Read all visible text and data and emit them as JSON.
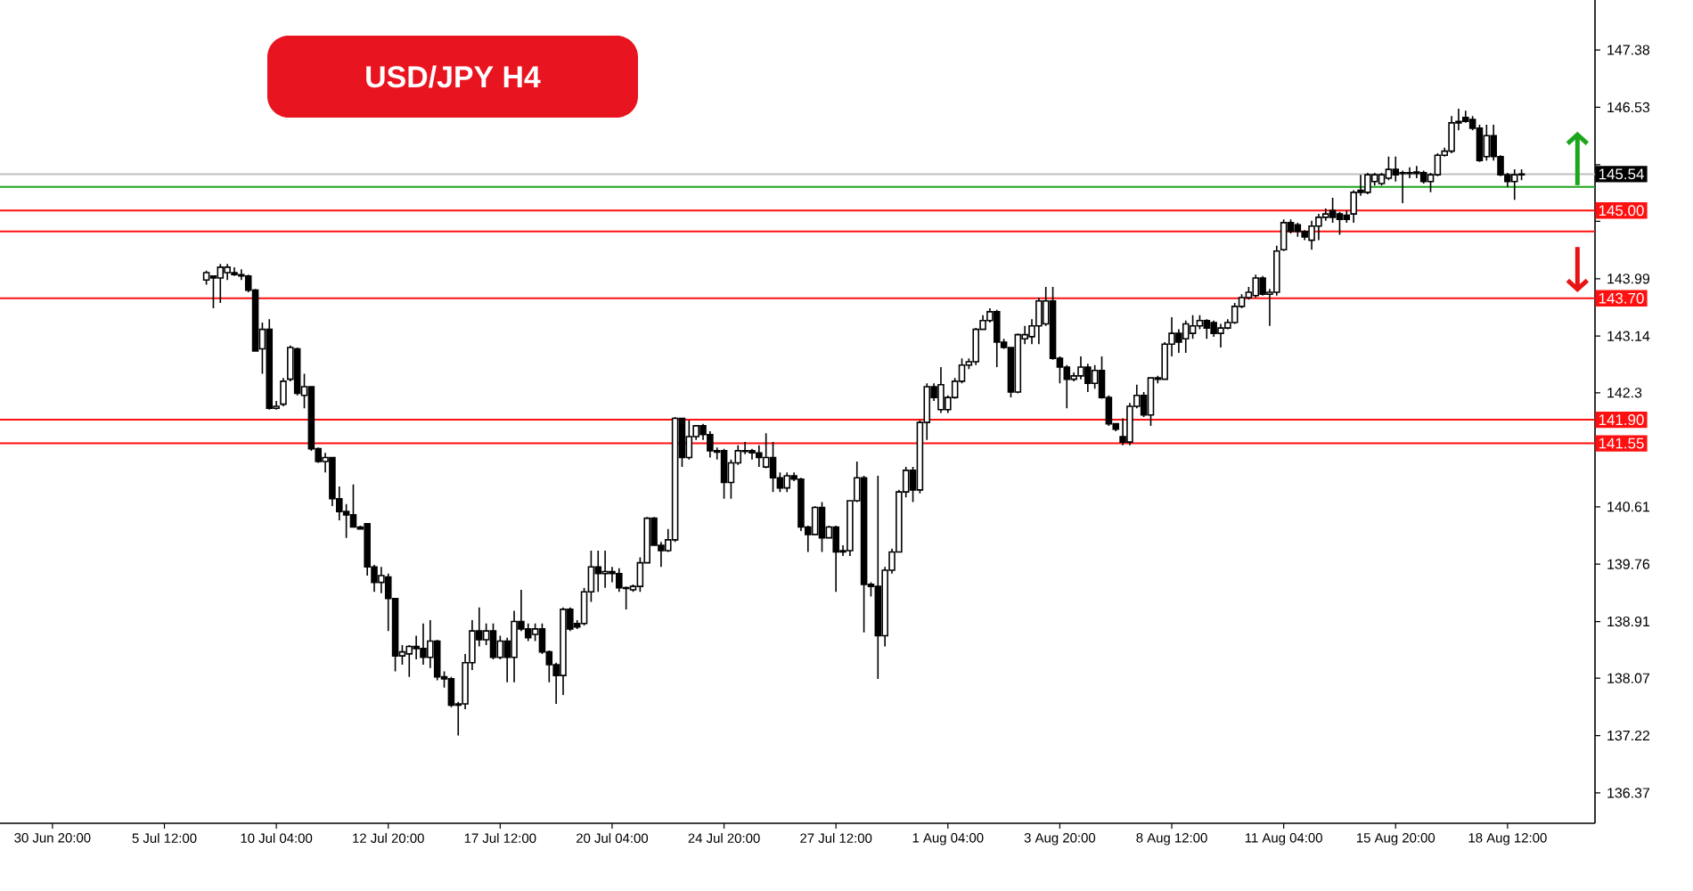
{
  "chart_data": {
    "type": "candlestick",
    "title": "USD/JPY H4",
    "color": "#000000",
    "categories": [
      null,
      null,
      null,
      null,
      null,
      null,
      null,
      "30 Jun 20:00",
      null,
      null,
      null,
      null,
      null,
      null,
      null,
      null,
      null,
      null,
      null,
      null,
      null,
      null,
      null,
      "5 Jul 12:00",
      null,
      null,
      null,
      null,
      null,
      null,
      null,
      null,
      null,
      null,
      null,
      null,
      null,
      null,
      null,
      "10 Jul 04:00",
      null,
      null,
      null,
      null,
      null,
      null,
      null,
      null,
      null,
      null,
      null,
      null,
      null,
      null,
      null,
      "12 Jul 20:00",
      null,
      null,
      null,
      null,
      null,
      null,
      null,
      null,
      null,
      null,
      null,
      null,
      null,
      null,
      null,
      "17 Jul 12:00",
      null,
      null,
      null,
      null,
      null,
      null,
      null,
      null,
      null,
      null,
      null,
      null,
      null,
      null,
      null,
      "20 Jul 04:00",
      null,
      null,
      null,
      null,
      null,
      null,
      null,
      null,
      null,
      null,
      null,
      null,
      null,
      null,
      null,
      "24 Jul 20:00",
      null,
      null,
      null,
      null,
      null,
      null,
      null,
      null,
      null,
      null,
      null,
      null,
      null,
      null,
      null,
      "27 Jul 12:00",
      null,
      null,
      null,
      null,
      null,
      null,
      null,
      null,
      null,
      null,
      null,
      null,
      null,
      null,
      null,
      "1 Aug 04:00",
      null,
      null,
      null,
      null,
      null,
      null,
      null,
      null,
      null,
      null,
      null,
      null,
      null,
      null,
      null,
      "3 Aug 20:00",
      null,
      null,
      null,
      null,
      null,
      null,
      null,
      null,
      null,
      null,
      null,
      null,
      null,
      null,
      null,
      "8 Aug 12:00",
      null,
      null,
      null,
      null,
      null,
      null,
      null,
      null,
      null,
      null,
      null,
      null,
      null,
      null,
      null,
      "11 Aug 04:00",
      null,
      null,
      null,
      null,
      null,
      null,
      null,
      null,
      null,
      null,
      null,
      null,
      null,
      null,
      null,
      "15 Aug 20:00",
      null,
      null,
      null,
      null,
      null,
      null,
      null,
      null,
      null,
      null,
      null,
      null,
      null,
      null,
      null,
      "18 Aug 12:00",
      null,
      null,
      null,
      null,
      null,
      null,
      null,
      null,
      null,
      null,
      null,
      null
    ],
    "ohlc": [
      null,
      null,
      null,
      null,
      null,
      null,
      null,
      null,
      null,
      null,
      null,
      null,
      null,
      null,
      null,
      null,
      null,
      null,
      null,
      null,
      null,
      null,
      null,
      null,
      null,
      null,
      null,
      null,
      null,
      [
        143.97,
        144.11,
        143.9,
        144.08
      ],
      [
        144.03,
        144.03,
        143.55,
        144.0
      ],
      [
        144.0,
        144.21,
        143.63,
        144.16
      ],
      [
        144.08,
        144.21,
        143.97,
        144.16
      ],
      [
        144.08,
        144.16,
        144.03,
        144.05
      ],
      [
        144.05,
        144.13,
        143.97,
        144.03
      ],
      [
        144.03,
        144.05,
        143.79,
        143.82
      ],
      [
        143.82,
        143.84,
        142.92,
        142.92
      ],
      [
        142.95,
        143.34,
        142.58,
        143.24
      ],
      [
        143.24,
        143.39,
        142.05,
        142.07
      ],
      [
        142.07,
        142.18,
        142.05,
        142.1
      ],
      [
        142.13,
        142.52,
        142.1,
        142.47
      ],
      [
        142.5,
        143.0,
        142.47,
        142.97
      ],
      [
        142.95,
        142.97,
        142.26,
        142.29
      ],
      [
        142.26,
        142.58,
        142.07,
        142.39
      ],
      [
        142.39,
        142.39,
        141.44,
        141.47
      ],
      [
        141.47,
        141.49,
        141.26,
        141.28
      ],
      [
        141.28,
        141.41,
        141.12,
        141.34
      ],
      [
        141.34,
        141.34,
        140.62,
        140.73
      ],
      [
        140.73,
        140.91,
        140.41,
        140.54
      ],
      [
        140.54,
        140.65,
        140.15,
        140.49
      ],
      [
        140.49,
        140.94,
        140.31,
        140.31
      ],
      [
        140.31,
        140.33,
        140.28,
        140.28
      ],
      [
        140.36,
        140.36,
        139.59,
        139.72
      ],
      [
        139.72,
        139.75,
        139.35,
        139.49
      ],
      [
        139.49,
        139.72,
        139.33,
        139.59
      ],
      [
        139.57,
        139.62,
        138.77,
        139.25
      ],
      [
        139.25,
        139.25,
        138.17,
        138.4
      ],
      [
        138.4,
        138.56,
        138.27,
        138.46
      ],
      [
        138.43,
        138.56,
        138.09,
        138.54
      ],
      [
        138.54,
        138.7,
        138.35,
        138.51
      ],
      [
        138.51,
        138.88,
        138.27,
        138.38
      ],
      [
        138.38,
        138.93,
        138.22,
        138.62
      ],
      [
        138.62,
        138.64,
        138.04,
        138.09
      ],
      [
        138.09,
        138.17,
        137.93,
        138.06
      ],
      [
        138.06,
        138.09,
        137.64,
        137.67
      ],
      [
        137.67,
        137.72,
        137.22,
        137.69
      ],
      [
        137.69,
        138.43,
        137.61,
        138.3
      ],
      [
        138.3,
        138.93,
        138.19,
        138.77
      ],
      [
        138.77,
        139.12,
        138.54,
        138.64
      ],
      [
        138.64,
        138.88,
        138.56,
        138.77
      ],
      [
        138.77,
        138.88,
        138.35,
        138.38
      ],
      [
        138.38,
        138.7,
        138.35,
        138.62
      ],
      [
        138.62,
        138.67,
        138.01,
        138.38
      ],
      [
        138.38,
        139.07,
        138.01,
        138.91
      ],
      [
        138.91,
        139.38,
        138.77,
        138.8
      ],
      [
        138.8,
        138.88,
        138.62,
        138.67
      ],
      [
        138.72,
        138.88,
        138.62,
        138.8
      ],
      [
        138.8,
        138.88,
        138.43,
        138.46
      ],
      [
        138.46,
        138.48,
        138.01,
        138.27
      ],
      [
        138.27,
        138.3,
        137.69,
        138.11
      ],
      [
        138.11,
        139.12,
        137.82,
        139.09
      ],
      [
        139.09,
        139.12,
        138.77,
        138.8
      ],
      [
        138.88,
        138.93,
        138.8,
        138.83
      ],
      [
        138.88,
        139.41,
        138.85,
        139.35
      ],
      [
        139.35,
        139.96,
        139.2,
        139.72
      ],
      [
        139.72,
        139.96,
        139.35,
        139.62
      ],
      [
        139.62,
        139.96,
        139.41,
        139.65
      ],
      [
        139.65,
        139.72,
        139.49,
        139.62
      ],
      [
        139.62,
        139.7,
        139.35,
        139.41
      ],
      [
        139.41,
        139.43,
        139.09,
        139.4
      ],
      [
        139.38,
        139.46,
        139.35,
        139.43
      ],
      [
        139.43,
        139.86,
        139.35,
        139.78
      ],
      [
        139.78,
        140.46,
        139.78,
        140.44
      ],
      [
        140.44,
        140.46,
        140.04,
        140.04
      ],
      [
        140.04,
        140.09,
        139.72,
        139.96
      ],
      [
        139.96,
        140.28,
        139.94,
        140.12
      ],
      [
        140.12,
        141.94,
        140.09,
        141.92
      ],
      [
        141.92,
        141.92,
        141.2,
        141.34
      ],
      [
        141.34,
        141.89,
        141.31,
        141.65
      ],
      [
        141.65,
        141.81,
        141.6,
        141.81
      ],
      [
        141.81,
        141.84,
        141.6,
        141.68
      ],
      [
        141.68,
        141.73,
        141.34,
        141.44
      ],
      [
        141.44,
        141.49,
        141.31,
        141.42
      ],
      [
        141.44,
        141.47,
        140.73,
        140.97
      ],
      [
        140.97,
        141.31,
        140.73,
        141.26
      ],
      [
        141.26,
        141.52,
        141.23,
        141.44
      ],
      [
        141.44,
        141.57,
        141.39,
        141.43
      ],
      [
        141.44,
        141.47,
        141.31,
        141.41
      ],
      [
        141.41,
        141.52,
        141.2,
        141.34
      ],
      [
        141.2,
        141.7,
        141.18,
        141.34
      ],
      [
        141.34,
        141.57,
        140.83,
        141.04
      ],
      [
        141.04,
        141.12,
        140.83,
        140.89
      ],
      [
        140.89,
        141.12,
        140.83,
        141.07
      ],
      [
        141.07,
        141.12,
        140.99,
        141.02
      ],
      [
        141.02,
        141.04,
        140.25,
        140.31
      ],
      [
        140.31,
        140.33,
        139.94,
        140.2
      ],
      [
        140.2,
        140.62,
        140.2,
        140.6
      ],
      [
        140.6,
        140.68,
        139.94,
        140.15
      ],
      [
        140.15,
        140.33,
        140.15,
        140.31
      ],
      [
        140.31,
        140.33,
        139.35,
        139.94
      ],
      [
        139.94,
        140.04,
        139.88,
        139.96
      ],
      [
        139.96,
        140.7,
        139.88,
        140.7
      ],
      [
        140.7,
        141.28,
        140.68,
        141.04
      ],
      [
        141.04,
        141.07,
        138.75,
        139.46
      ],
      [
        139.46,
        139.49,
        139.28,
        139.43
      ],
      [
        139.43,
        141.07,
        138.06,
        138.7
      ],
      [
        138.7,
        139.72,
        138.54,
        139.67
      ],
      [
        139.67,
        139.99,
        139.62,
        139.94
      ],
      [
        139.94,
        140.86,
        139.94,
        140.83
      ],
      [
        140.83,
        141.2,
        140.75,
        141.15
      ],
      [
        141.15,
        141.2,
        140.68,
        140.86
      ],
      [
        140.86,
        141.89,
        140.81,
        141.86
      ],
      [
        141.86,
        142.44,
        141.6,
        142.39
      ],
      [
        142.39,
        142.44,
        142.18,
        142.23
      ],
      [
        142.05,
        142.68,
        142.0,
        142.42
      ],
      [
        142.05,
        142.26,
        142.0,
        142.23
      ],
      [
        142.23,
        142.52,
        142.21,
        142.47
      ],
      [
        142.47,
        142.81,
        142.44,
        142.71
      ],
      [
        142.71,
        142.81,
        142.65,
        142.76
      ],
      [
        142.76,
        143.26,
        142.71,
        143.24
      ],
      [
        143.24,
        143.45,
        143.24,
        143.37
      ],
      [
        143.37,
        143.55,
        143.34,
        143.5
      ],
      [
        143.5,
        143.53,
        142.68,
        143.05
      ],
      [
        143.05,
        143.1,
        142.95,
        142.97
      ],
      [
        142.97,
        142.97,
        142.23,
        142.31
      ],
      [
        142.31,
        143.18,
        142.29,
        143.16
      ],
      [
        143.1,
        143.29,
        143.02,
        143.16
      ],
      [
        143.13,
        143.39,
        143.02,
        143.29
      ],
      [
        143.29,
        143.71,
        143.02,
        143.66
      ],
      [
        143.32,
        143.87,
        143.29,
        143.66
      ],
      [
        143.66,
        143.87,
        142.79,
        142.81
      ],
      [
        142.81,
        142.84,
        142.44,
        142.68
      ],
      [
        142.68,
        142.71,
        142.07,
        142.5
      ],
      [
        142.5,
        142.6,
        142.47,
        142.55
      ],
      [
        142.55,
        142.84,
        142.5,
        142.68
      ],
      [
        142.68,
        142.73,
        142.31,
        142.44
      ],
      [
        142.44,
        142.71,
        142.36,
        142.63
      ],
      [
        142.63,
        142.84,
        142.21,
        142.23
      ],
      [
        142.23,
        142.26,
        141.81,
        141.84
      ],
      [
        141.84,
        141.84,
        141.73,
        141.76
      ],
      [
        141.65,
        141.92,
        141.52,
        141.57
      ],
      [
        141.57,
        142.15,
        141.52,
        142.1
      ],
      [
        142.1,
        142.42,
        142.07,
        142.26
      ],
      [
        142.26,
        142.31,
        141.94,
        141.97
      ],
      [
        141.97,
        142.52,
        141.81,
        142.52
      ],
      [
        142.52,
        142.55,
        142.44,
        142.5
      ],
      [
        142.5,
        143.05,
        142.5,
        143.02
      ],
      [
        143.02,
        143.42,
        142.84,
        143.18
      ],
      [
        143.18,
        143.24,
        142.89,
        143.05
      ],
      [
        143.1,
        143.37,
        142.89,
        143.32
      ],
      [
        143.18,
        143.45,
        143.1,
        143.29
      ],
      [
        143.29,
        143.45,
        143.24,
        143.37
      ],
      [
        143.37,
        143.39,
        143.1,
        143.26
      ],
      [
        143.34,
        143.37,
        143.13,
        143.18
      ],
      [
        143.18,
        143.32,
        142.97,
        143.26
      ],
      [
        143.26,
        143.39,
        143.24,
        143.34
      ],
      [
        143.34,
        143.63,
        143.32,
        143.58
      ],
      [
        143.58,
        143.76,
        143.55,
        143.71
      ],
      [
        143.71,
        143.87,
        143.68,
        143.79
      ],
      [
        143.74,
        144.05,
        143.71,
        144.0
      ],
      [
        144.0,
        144.03,
        143.74,
        143.76
      ],
      [
        143.76,
        143.84,
        143.29,
        143.79
      ],
      [
        143.79,
        144.48,
        143.74,
        144.4
      ],
      [
        144.42,
        144.87,
        144.4,
        144.82
      ],
      [
        144.82,
        144.87,
        144.66,
        144.69
      ],
      [
        144.79,
        144.82,
        144.61,
        144.69
      ],
      [
        144.69,
        144.71,
        144.56,
        144.61
      ],
      [
        144.56,
        144.85,
        144.42,
        144.77
      ],
      [
        144.77,
        144.95,
        144.56,
        144.9
      ],
      [
        144.9,
        145.03,
        144.85,
        144.95
      ],
      [
        145.0,
        145.19,
        144.82,
        144.9
      ],
      [
        144.95,
        144.98,
        144.64,
        144.87
      ],
      [
        144.93,
        145.0,
        144.82,
        144.87
      ],
      [
        144.95,
        145.3,
        144.82,
        145.27
      ],
      [
        145.3,
        145.53,
        145.22,
        145.27
      ],
      [
        145.27,
        145.56,
        145.24,
        145.53
      ],
      [
        145.43,
        145.56,
        145.37,
        145.53
      ],
      [
        145.4,
        145.56,
        145.37,
        145.53
      ],
      [
        145.48,
        145.8,
        145.45,
        145.61
      ],
      [
        145.61,
        145.8,
        145.43,
        145.53
      ],
      [
        145.56,
        145.59,
        145.11,
        145.55
      ],
      [
        145.56,
        145.64,
        145.48,
        145.55
      ],
      [
        145.57,
        145.66,
        145.48,
        145.55
      ],
      [
        145.56,
        145.59,
        145.4,
        145.43
      ],
      [
        145.43,
        145.56,
        145.27,
        145.53
      ],
      [
        145.53,
        145.85,
        145.51,
        145.82
      ],
      [
        145.82,
        145.93,
        145.8,
        145.88
      ],
      [
        145.88,
        146.4,
        145.85,
        146.3
      ],
      [
        146.32,
        146.51,
        146.19,
        146.3
      ],
      [
        146.38,
        146.48,
        146.3,
        146.32
      ],
      [
        146.35,
        146.4,
        146.19,
        146.22
      ],
      [
        146.22,
        146.27,
        145.72,
        145.74
      ],
      [
        145.8,
        146.27,
        145.74,
        146.11
      ],
      [
        146.11,
        146.27,
        145.74,
        145.8
      ],
      [
        145.8,
        145.82,
        145.51,
        145.53
      ],
      [
        145.53,
        145.56,
        145.35,
        145.43
      ],
      [
        145.43,
        145.61,
        145.16,
        145.53
      ],
      [
        145.53,
        145.61,
        145.45,
        145.54
      ],
      null,
      null,
      null,
      null,
      null,
      null,
      null,
      null,
      null,
      null
    ],
    "ylim": [
      135.92,
      148.12
    ],
    "yticks": [
      147.38,
      146.53,
      {
        "value": 145.68,
        "label": null
      },
      {
        "value": 144.84,
        "label": null
      },
      143.99,
      143.14,
      142.3,
      {
        "value": 141.45,
        "label": null
      },
      140.61,
      139.76,
      138.91,
      138.07,
      137.22,
      136.37
    ],
    "ref_lines": [
      {
        "axis": "y",
        "value": 145.54,
        "color": "#c0c0c0"
      },
      {
        "axis": "y",
        "value": 145.35,
        "color": "#1ea51e"
      },
      {
        "axis": "y",
        "value": 145.0,
        "label": "145.00",
        "color": "#ff1010"
      },
      {
        "axis": "y",
        "value": 144.69,
        "color": "#ff1010"
      },
      {
        "axis": "y",
        "value": 143.7,
        "label": "143.70",
        "color": "#ff1010"
      },
      {
        "axis": "y",
        "value": 141.9,
        "label": "141.90",
        "color": "#ff1010"
      },
      {
        "axis": "y",
        "value": 141.55,
        "label": "141.55",
        "color": "#ff1010"
      }
    ],
    "annotations": [
      {
        "text": "145.54",
        "y": 145.54
      }
    ]
  }
}
